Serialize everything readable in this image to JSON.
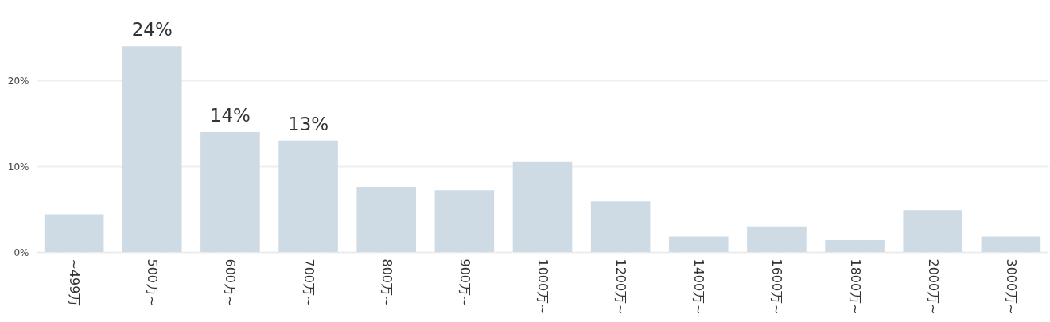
{
  "chart_data": {
    "type": "bar",
    "categories": [
      "~499万",
      "500万~",
      "600万~",
      "700万~",
      "800万~",
      "900万~",
      "1000万~",
      "1200万~",
      "1400万~",
      "1600万~",
      "1800万~",
      "2000万~",
      "3000万~"
    ],
    "values": [
      4.4,
      24,
      14,
      13,
      7.6,
      7.2,
      10.5,
      5.9,
      1.8,
      3.0,
      1.4,
      4.9,
      1.8
    ],
    "value_labels": [
      null,
      "24%",
      "14%",
      "13%",
      null,
      null,
      null,
      null,
      null,
      null,
      null,
      null,
      null
    ],
    "color": "#cfdbe4",
    "ylim": [
      0,
      28
    ],
    "yticks": [
      {
        "value": 0,
        "label": "0%"
      },
      {
        "value": 10,
        "label": "10%"
      },
      {
        "value": 20,
        "label": "20%"
      }
    ],
    "grid": "y"
  }
}
